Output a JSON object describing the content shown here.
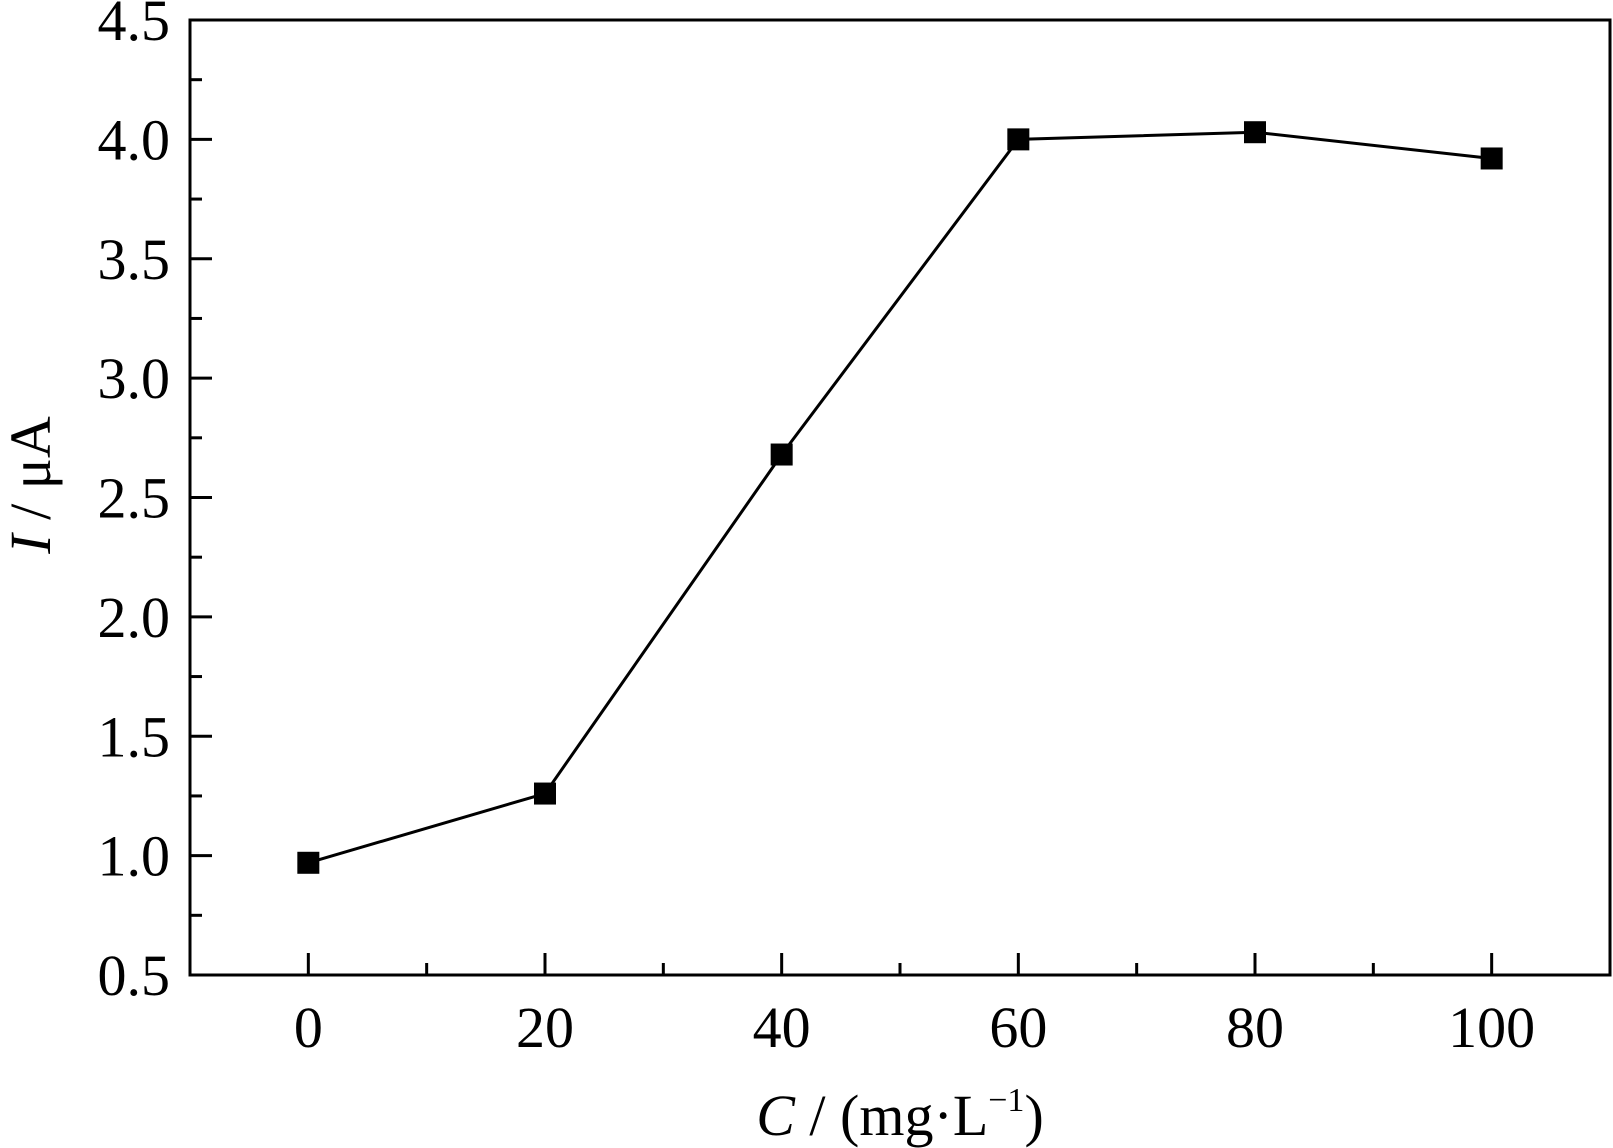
{
  "chart_data": {
    "type": "line",
    "x": [
      0,
      20,
      40,
      60,
      80,
      100
    ],
    "series": [
      {
        "values": [
          0.97,
          1.26,
          2.68,
          4.0,
          4.03,
          3.92
        ],
        "marker": "square",
        "color": "#000000"
      }
    ],
    "xlim": [
      -10,
      110
    ],
    "ylim": [
      0.5,
      4.5
    ],
    "x_ticks": [
      0,
      20,
      40,
      60,
      80,
      100
    ],
    "x_tick_labels": [
      "0",
      "20",
      "40",
      "60",
      "80",
      "100"
    ],
    "x_minor_step": 10,
    "y_ticks": [
      0.5,
      1.0,
      1.5,
      2.0,
      2.5,
      3.0,
      3.5,
      4.0,
      4.5
    ],
    "y_tick_labels": [
      "0.5",
      "1.0",
      "1.5",
      "2.0",
      "2.5",
      "3.0",
      "3.5",
      "4.0",
      "4.5"
    ],
    "y_minor_step": 0.25,
    "xlabel": {
      "var": "C",
      "sep": " / ",
      "unit_open": "(mg",
      "dot": "·",
      "unit_base": "L",
      "unit_exp": "−1",
      "unit_close": ")"
    },
    "ylabel": {
      "var": "I",
      "sep": " / ",
      "unit": "μA"
    },
    "grid": false,
    "legend": "none"
  }
}
